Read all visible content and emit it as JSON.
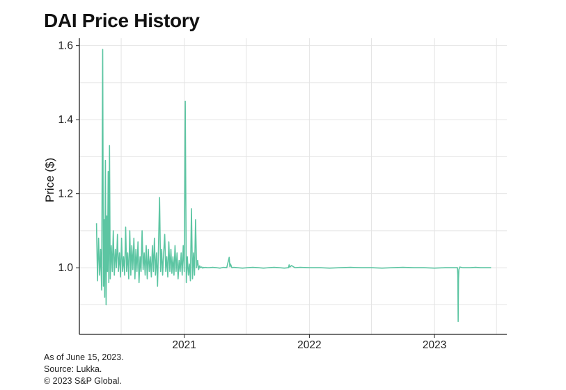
{
  "chart_data": {
    "type": "line",
    "title": "DAI Price History",
    "xlabel": "",
    "ylabel": "Price ($)",
    "xlim": [
      "2020-03-01",
      "2023-07-31"
    ],
    "ylim": [
      0.82,
      1.62
    ],
    "yticks": [
      1.0,
      1.2,
      1.4,
      1.6
    ],
    "ytick_labels": [
      "1.0",
      "1.2",
      "1.4",
      "1.6"
    ],
    "xticks": [
      "2021-01-01",
      "2022-01-01",
      "2023-01-01"
    ],
    "xtick_labels": [
      "2021",
      "2022",
      "2023"
    ],
    "grid": true,
    "series": [
      {
        "color": "#5cc5a2",
        "x": [
          "2020-04-20",
          "2020-04-23",
          "2020-04-26",
          "2020-04-29",
          "2020-05-02",
          "2020-05-05",
          "2020-05-08",
          "2020-05-10",
          "2020-05-12",
          "2020-05-14",
          "2020-05-16",
          "2020-05-18",
          "2020-05-20",
          "2020-05-22",
          "2020-05-24",
          "2020-05-26",
          "2020-05-28",
          "2020-05-30",
          "2020-06-02",
          "2020-06-05",
          "2020-06-08",
          "2020-06-11",
          "2020-06-14",
          "2020-06-17",
          "2020-06-20",
          "2020-06-23",
          "2020-06-26",
          "2020-06-29",
          "2020-07-02",
          "2020-07-05",
          "2020-07-08",
          "2020-07-11",
          "2020-07-14",
          "2020-07-17",
          "2020-07-20",
          "2020-07-23",
          "2020-07-26",
          "2020-07-29",
          "2020-08-01",
          "2020-08-04",
          "2020-08-07",
          "2020-08-10",
          "2020-08-13",
          "2020-08-16",
          "2020-08-19",
          "2020-08-22",
          "2020-08-25",
          "2020-08-28",
          "2020-08-31",
          "2020-09-03",
          "2020-09-06",
          "2020-09-09",
          "2020-09-12",
          "2020-09-15",
          "2020-09-18",
          "2020-09-21",
          "2020-09-24",
          "2020-09-27",
          "2020-09-30",
          "2020-10-03",
          "2020-10-06",
          "2020-10-09",
          "2020-10-12",
          "2020-10-15",
          "2020-10-18",
          "2020-10-21",
          "2020-10-24",
          "2020-10-27",
          "2020-10-30",
          "2020-11-02",
          "2020-11-05",
          "2020-11-08",
          "2020-11-11",
          "2020-11-14",
          "2020-11-17",
          "2020-11-20",
          "2020-11-23",
          "2020-11-26",
          "2020-11-29",
          "2020-12-02",
          "2020-12-05",
          "2020-12-08",
          "2020-12-11",
          "2020-12-14",
          "2020-12-17",
          "2020-12-20",
          "2020-12-23",
          "2020-12-26",
          "2020-12-29",
          "2021-01-01",
          "2021-01-04",
          "2021-01-07",
          "2021-01-10",
          "2021-01-13",
          "2021-01-16",
          "2021-01-19",
          "2021-01-22",
          "2021-01-25",
          "2021-01-28",
          "2021-01-31",
          "2021-02-03",
          "2021-02-06",
          "2021-02-09",
          "2021-02-12",
          "2021-02-15",
          "2021-02-18",
          "2021-02-21",
          "2021-02-24",
          "2021-02-27",
          "2021-03-02",
          "2021-03-05",
          "2021-03-08",
          "2021-03-15",
          "2021-03-25",
          "2021-04-05",
          "2021-04-15",
          "2021-04-25",
          "2021-05-05",
          "2021-05-12",
          "2021-05-14",
          "2021-05-16",
          "2021-05-20",
          "2021-05-25",
          "2021-06-05",
          "2021-06-20",
          "2021-07-05",
          "2021-07-20",
          "2021-08-05",
          "2021-08-20",
          "2021-09-05",
          "2021-09-20",
          "2021-10-05",
          "2021-10-20",
          "2021-11-01",
          "2021-11-03",
          "2021-11-05",
          "2021-11-10",
          "2021-11-20",
          "2021-12-05",
          "2022-01-01",
          "2022-02-01",
          "2022-03-01",
          "2022-04-01",
          "2022-05-01",
          "2022-06-01",
          "2022-07-01",
          "2022-08-01",
          "2022-09-01",
          "2022-10-01",
          "2022-11-01",
          "2022-12-01",
          "2023-01-01",
          "2023-02-01",
          "2023-03-01",
          "2023-03-09",
          "2023-03-10",
          "2023-03-11",
          "2023-03-12",
          "2023-03-13",
          "2023-03-16",
          "2023-03-25",
          "2023-04-15",
          "2023-05-01",
          "2023-05-15",
          "2023-06-01",
          "2023-06-15"
        ],
        "values": [
          1.12,
          0.965,
          1.08,
          0.98,
          1.05,
          0.94,
          1.59,
          0.95,
          1.13,
          0.92,
          1.29,
          0.9,
          1.14,
          0.99,
          1.26,
          0.96,
          1.33,
          0.97,
          1.06,
          0.99,
          1.1,
          0.98,
          1.05,
          1.0,
          1.09,
          0.99,
          1.04,
          0.975,
          1.08,
          0.99,
          1.03,
          0.98,
          1.11,
          0.99,
          1.04,
          0.97,
          1.1,
          0.98,
          1.06,
          0.995,
          1.08,
          0.97,
          1.05,
          0.99,
          1.07,
          0.96,
          1.03,
          0.99,
          1.1,
          0.995,
          1.04,
          0.98,
          1.06,
          0.97,
          1.05,
          0.99,
          1.03,
          0.975,
          1.06,
          0.99,
          1.08,
          0.98,
          1.04,
          0.95,
          1.06,
          1.19,
          0.99,
          1.05,
          0.98,
          1.04,
          1.09,
          0.99,
          1.03,
          0.975,
          1.07,
          0.99,
          1.05,
          0.985,
          1.03,
          0.98,
          1.06,
          0.99,
          1.04,
          0.97,
          1.02,
          0.99,
          1.04,
          0.98,
          1.06,
          0.99,
          1.45,
          0.96,
          1.03,
          0.98,
          1.01,
          0.965,
          1.16,
          0.97,
          1.04,
          0.98,
          1.13,
          1.0,
          1.02,
          0.995,
          1.005,
          1.0,
          1.002,
          0.999,
          1.001,
          1.0,
          1.001,
          1.0,
          1.0,
          1.001,
          1.0,
          0.999,
          1.001,
          1.0,
          1.028,
          1.003,
          1.01,
          1.0,
          1.001,
          1.0,
          0.999,
          1.0,
          1.001,
          1.0,
          0.999,
          1.0,
          1.001,
          1.0,
          0.999,
          1.0,
          1.008,
          1.002,
          1.006,
          1.0,
          1.001,
          1.0,
          1.0,
          0.999,
          1.0,
          1.001,
          1.0,
          1.0,
          0.999,
          1.0,
          1.001,
          1.0,
          1.0,
          0.999,
          1.0,
          1.0,
          1.0,
          0.98,
          0.855,
          0.97,
          0.995,
          1.002,
          1.0,
          1.0,
          1.001,
          1.0,
          1.0,
          1.0
        ]
      }
    ]
  },
  "footnotes": {
    "as_of": "As of June 15, 2023.",
    "source": "Source: Lukka.",
    "copyright": "© 2023 S&P Global."
  }
}
